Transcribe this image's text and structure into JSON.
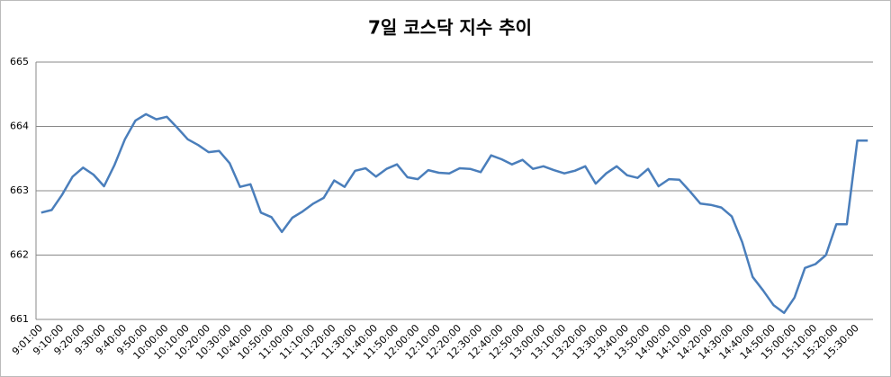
{
  "chart_data": {
    "type": "line",
    "title": "7일 코스닥 지수 추이",
    "categories": [
      "9:01:00",
      null,
      "9:10:00",
      null,
      "9:20:00",
      null,
      "9:30:00",
      null,
      "9:40:00",
      null,
      "9:50:00",
      null,
      "10:00:00",
      null,
      "10:10:00",
      null,
      "10:20:00",
      null,
      "10:30:00",
      null,
      "10:40:00",
      null,
      "10:50:00",
      null,
      "11:00:00",
      null,
      "11:10:00",
      null,
      "11:20:00",
      null,
      "11:30:00",
      null,
      "11:40:00",
      null,
      "11:50:00",
      null,
      "12:00:00",
      null,
      "12:10:00",
      null,
      "12:20:00",
      null,
      "12:30:00",
      null,
      "12:40:00",
      null,
      "12:50:00",
      null,
      "13:00:00",
      null,
      "13:10:00",
      null,
      "13:20:00",
      null,
      "13:30:00",
      null,
      "13:40:00",
      null,
      "13:50:00",
      null,
      "14:00:00",
      null,
      "14:10:00",
      null,
      "14:20:00",
      null,
      "14:30:00",
      null,
      "14:40:00",
      null,
      "14:50:00",
      null,
      "15:00:00",
      null,
      "15:10:00",
      null,
      "15:20:00",
      null,
      "15:30:00",
      null
    ],
    "values": [
      662.66,
      662.7,
      662.94,
      663.22,
      663.36,
      663.25,
      663.07,
      663.4,
      663.8,
      664.09,
      664.19,
      664.11,
      664.15,
      663.98,
      663.8,
      663.71,
      663.6,
      663.62,
      663.43,
      663.06,
      663.1,
      662.66,
      662.59,
      662.36,
      662.58,
      662.68,
      662.8,
      662.89,
      663.16,
      663.06,
      663.31,
      663.35,
      663.22,
      663.34,
      663.41,
      663.21,
      663.18,
      663.32,
      663.28,
      663.27,
      663.35,
      663.34,
      663.29,
      663.55,
      663.49,
      663.41,
      663.48,
      663.34,
      663.38,
      663.32,
      663.27,
      663.31,
      663.38,
      663.11,
      663.27,
      663.38,
      663.24,
      663.2,
      663.34,
      663.07,
      663.18,
      663.17,
      662.99,
      662.8,
      662.78,
      662.74,
      662.6,
      662.2,
      661.66,
      661.45,
      661.22,
      661.1,
      661.34,
      661.8,
      661.86,
      662.0,
      662.48,
      662.48,
      663.78,
      663.78
    ],
    "color": "#4a7ebb",
    "ylim": [
      661,
      665
    ],
    "yticks": [
      661,
      662,
      663,
      664,
      665
    ],
    "grid": true
  }
}
